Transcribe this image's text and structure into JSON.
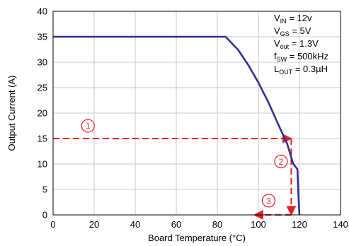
{
  "chart_data": {
    "type": "line",
    "xlabel": "Board Temperature (°C)",
    "ylabel": "Output Current (A)",
    "xlim": [
      0,
      140
    ],
    "ylim": [
      0,
      40
    ],
    "xticks": [
      0,
      20,
      40,
      60,
      80,
      100,
      120,
      140
    ],
    "yticks": [
      0,
      5,
      10,
      15,
      20,
      25,
      30,
      35,
      40
    ],
    "grid": true,
    "series": [
      {
        "color": "#2e3192",
        "x": [
          0,
          84,
          90,
          95,
          100,
          105,
          110,
          114,
          117,
          119,
          119.5,
          120
        ],
        "y": [
          35,
          35,
          32.5,
          29.5,
          26,
          22,
          17.5,
          14,
          10,
          9,
          4,
          0
        ]
      }
    ],
    "conditions": [
      {
        "main": "V",
        "sub": "IN",
        "rest": " = 12v"
      },
      {
        "main": "V",
        "sub": "GS",
        "rest": " = 5V"
      },
      {
        "main": "V",
        "sub": "out",
        "rest": " = 1.3V"
      },
      {
        "main": "f",
        "sub": "SW",
        "rest": " = 500kHz"
      },
      {
        "main": "L",
        "sub": "OUT",
        "rest": " = 0.3µH"
      }
    ],
    "annotations": {
      "color": "#e41e26",
      "lines": [
        {
          "x": [
            0,
            116
          ],
          "y": [
            15,
            15
          ]
        },
        {
          "x": [
            116,
            116
          ],
          "y": [
            15,
            0
          ]
        },
        {
          "x": [
            116,
            98
          ],
          "y": [
            0,
            0
          ]
        }
      ],
      "markers": [
        {
          "label": "1",
          "x": 17,
          "y": 17.5
        },
        {
          "label": "2",
          "x": 111,
          "y": 10.5
        },
        {
          "label": "3",
          "x": 105,
          "y": 2.8
        }
      ]
    }
  }
}
